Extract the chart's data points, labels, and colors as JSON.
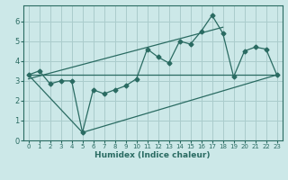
{
  "xlabel": "Humidex (Indice chaleur)",
  "xlim": [
    -0.5,
    23.5
  ],
  "ylim": [
    0,
    6.8
  ],
  "xticks": [
    0,
    1,
    2,
    3,
    4,
    5,
    6,
    7,
    8,
    9,
    10,
    11,
    12,
    13,
    14,
    15,
    16,
    17,
    18,
    19,
    20,
    21,
    22,
    23
  ],
  "yticks": [
    0,
    1,
    2,
    3,
    4,
    5,
    6
  ],
  "bg_color": "#cce8e8",
  "line_color": "#2a6b62",
  "grid_color": "#aacccc",
  "series1_x": [
    0,
    1,
    2,
    3,
    4,
    5,
    6,
    7,
    8,
    9,
    10,
    11,
    12,
    13,
    14,
    15,
    16,
    17,
    18,
    19,
    20,
    21,
    22,
    23
  ],
  "series1_y": [
    3.3,
    3.5,
    2.85,
    3.0,
    3.0,
    0.4,
    2.55,
    2.35,
    2.55,
    2.75,
    3.1,
    4.6,
    4.2,
    3.9,
    5.0,
    4.85,
    5.5,
    6.3,
    5.4,
    3.2,
    4.5,
    4.7,
    4.6,
    3.3
  ],
  "series2_x": [
    0,
    5,
    23
  ],
  "series2_y": [
    3.3,
    0.4,
    3.3
  ],
  "series3_x": [
    0,
    23
  ],
  "series3_y": [
    3.3,
    3.3
  ],
  "trend_x": [
    0,
    18
  ],
  "trend_y": [
    3.1,
    5.7
  ],
  "xtick_fontsize": 5.0,
  "ytick_fontsize": 6.0,
  "xlabel_fontsize": 6.5
}
